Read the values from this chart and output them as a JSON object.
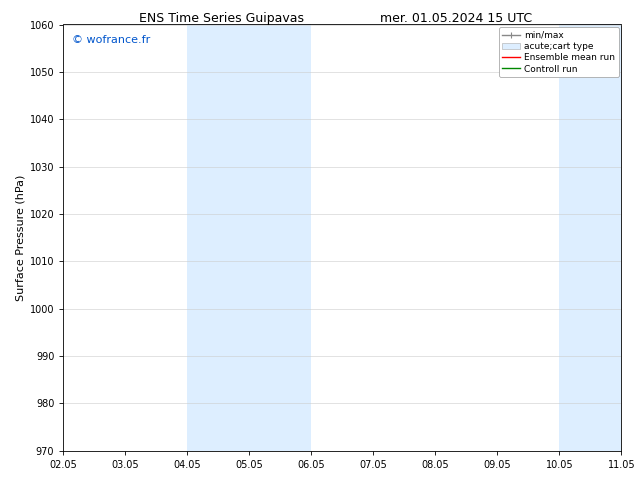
{
  "title_left": "ENS Time Series Guipavas",
  "title_right": "mer. 01.05.2024 15 UTC",
  "ylabel": "Surface Pressure (hPa)",
  "ylim": [
    970,
    1060
  ],
  "yticks": [
    970,
    980,
    990,
    1000,
    1010,
    1020,
    1030,
    1040,
    1050,
    1060
  ],
  "xlabels": [
    "02.05",
    "03.05",
    "04.05",
    "05.05",
    "06.05",
    "07.05",
    "08.05",
    "09.05",
    "10.05",
    "11.05"
  ],
  "xvalues": [
    0,
    1,
    2,
    3,
    4,
    5,
    6,
    7,
    8,
    9
  ],
  "shaded_regions": [
    {
      "xstart": 2,
      "xend": 3,
      "color": "#ddeeff"
    },
    {
      "xstart": 3,
      "xend": 4,
      "color": "#ddeeff"
    },
    {
      "xstart": 8,
      "xend": 9,
      "color": "#ddeeff"
    },
    {
      "xstart": 9,
      "xend": 9.5,
      "color": "#ddeeff"
    }
  ],
  "watermark": "© wofrance.fr",
  "watermark_color": "#0055cc",
  "legend_entries": [
    {
      "label": "min/max",
      "color": "#888888",
      "lw": 1.0,
      "style": "with_caps"
    },
    {
      "label": "acute;cart type",
      "color": "#ddeeff",
      "lw": 6,
      "style": "thick"
    },
    {
      "label": "Ensemble mean run",
      "color": "#ff0000",
      "lw": 1.0,
      "style": "solid"
    },
    {
      "label": "Controll run",
      "color": "#008800",
      "lw": 1.0,
      "style": "solid"
    }
  ],
  "bg_color": "#ffffff",
  "title_fontsize": 9,
  "ylabel_fontsize": 8,
  "tick_fontsize": 7,
  "watermark_fontsize": 8,
  "legend_fontsize": 6.5
}
